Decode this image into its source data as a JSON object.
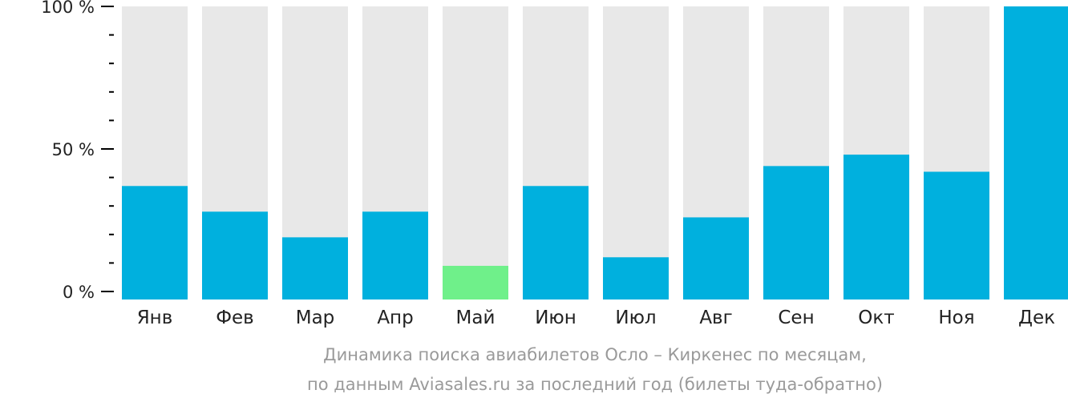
{
  "chart_data": {
    "type": "bar",
    "categories": [
      "Янв",
      "Фев",
      "Мар",
      "Апр",
      "Май",
      "Июн",
      "Июл",
      "Авг",
      "Сен",
      "Окт",
      "Ноя",
      "Дек"
    ],
    "values": [
      37,
      28,
      19,
      28,
      9,
      37,
      12,
      26,
      44,
      48,
      42,
      100
    ],
    "ylim": [
      0,
      100
    ],
    "y_ticks": [
      {
        "value": 0,
        "label": "0 %"
      },
      {
        "value": 50,
        "label": "50 %"
      },
      {
        "value": 100,
        "label": "100 %"
      }
    ],
    "y_minor_step": 10,
    "highlight_category": "Май",
    "colors": {
      "bar": "#00b0de",
      "bar_highlight": "#6ff08a",
      "bar_background": "#e8e8e8",
      "axis": "#000000",
      "tick_label": "#222222",
      "caption": "#9a9a9a"
    }
  },
  "caption": {
    "line1": "Динамика поиска авиабилетов Осло – Киркенес по месяцам,",
    "line2": "по данным Aviasales.ru за последний год (билеты туда-обратно)"
  }
}
